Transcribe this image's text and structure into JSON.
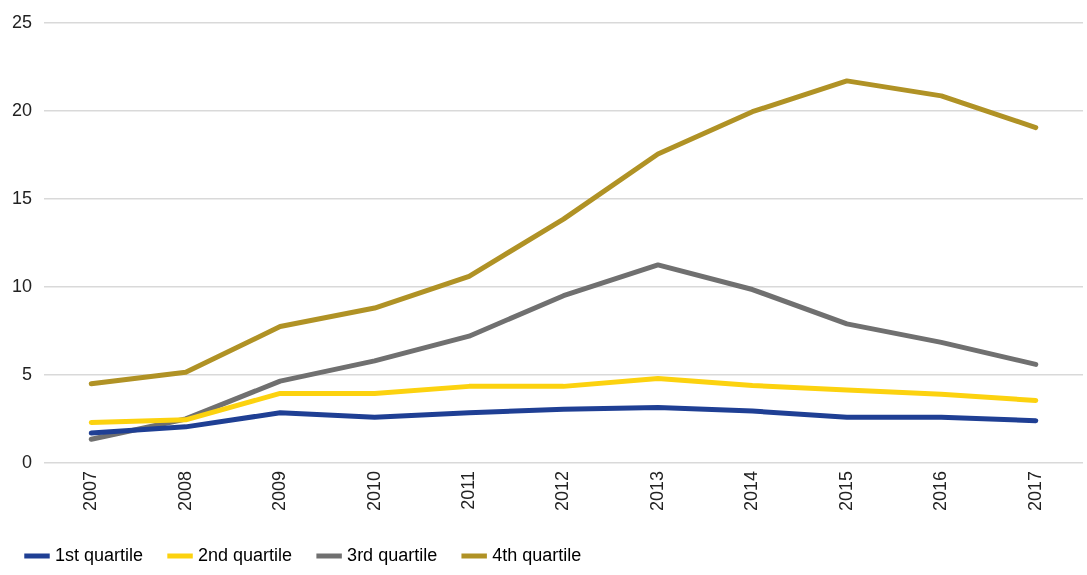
{
  "chart_data": {
    "type": "line",
    "categories": [
      "2007",
      "2008",
      "2009",
      "2010",
      "2011",
      "2012",
      "2013",
      "2014",
      "2015",
      "2016",
      "2017"
    ],
    "series": [
      {
        "name": "1st quartile",
        "color": "#1f3f94",
        "values": [
          1.7,
          2.05,
          2.85,
          2.6,
          2.85,
          3.05,
          3.15,
          2.95,
          2.6,
          2.6,
          2.4
        ]
      },
      {
        "name": "2nd quartile",
        "color": "#fcd20f",
        "values": [
          2.3,
          2.45,
          3.95,
          3.95,
          4.35,
          4.35,
          4.8,
          4.4,
          4.15,
          3.9,
          3.55
        ]
      },
      {
        "name": "3rd quartile",
        "color": "#707070",
        "values": [
          1.35,
          2.5,
          4.65,
          5.8,
          7.2,
          9.5,
          11.25,
          9.85,
          7.9,
          6.85,
          5.6
        ]
      },
      {
        "name": "4th quartile",
        "color": "#b09225",
        "values": [
          4.5,
          5.15,
          7.75,
          8.8,
          10.6,
          13.85,
          17.55,
          19.95,
          21.7,
          20.85,
          19.05
        ]
      }
    ],
    "ylim": [
      0,
      25
    ],
    "yticks": [
      0,
      5,
      10,
      15,
      20,
      25
    ],
    "grid": "y",
    "legend": "bottom",
    "marker": "none",
    "line_style": "solid"
  }
}
